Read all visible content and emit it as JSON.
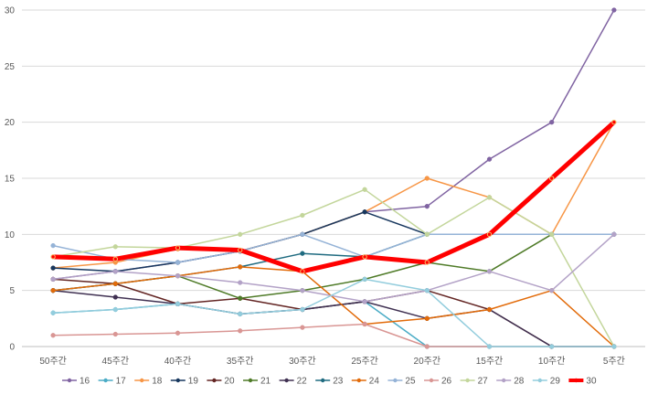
{
  "chart_data": {
    "type": "line",
    "title": "",
    "xlabel": "",
    "ylabel": "",
    "categories": [
      "50주간",
      "45주간",
      "40주간",
      "35주간",
      "30주간",
      "25주간",
      "20주간",
      "15주간",
      "10주간",
      "5주간"
    ],
    "ylim": [
      0,
      30
    ],
    "yticks": [
      0,
      5,
      10,
      15,
      20,
      25,
      30
    ],
    "grid": true,
    "legend_position": "bottom",
    "series": [
      {
        "name": "16",
        "color": "#8064a2",
        "width": 1.5,
        "values": [
          6,
          6.7,
          7.5,
          8.5,
          10,
          12,
          12.5,
          16.7,
          20,
          30
        ]
      },
      {
        "name": "17",
        "color": "#4bacc6",
        "width": 1.5,
        "values": [
          3,
          3.3,
          3.8,
          2.9,
          3.3,
          4,
          0,
          0,
          0,
          0
        ]
      },
      {
        "name": "18",
        "color": "#f79646",
        "width": 1.5,
        "values": [
          7,
          7.5,
          8.7,
          8.5,
          10,
          12,
          15,
          13.3,
          10,
          20
        ]
      },
      {
        "name": "19",
        "color": "#17375e",
        "width": 1.5,
        "values": [
          7,
          6.7,
          7.5,
          8.5,
          10,
          12,
          10,
          10,
          10,
          10
        ]
      },
      {
        "name": "20",
        "color": "#632523",
        "width": 1.5,
        "values": [
          6,
          5.6,
          3.8,
          4.3,
          3.3,
          4,
          5,
          3.3,
          0,
          0
        ]
      },
      {
        "name": "21",
        "color": "#4f7b28",
        "width": 1.5,
        "values": [
          5,
          5.6,
          6.3,
          4.3,
          5,
          6,
          7.5,
          6.7,
          10,
          10
        ]
      },
      {
        "name": "22",
        "color": "#403152",
        "width": 1.5,
        "values": [
          5,
          4.4,
          3.8,
          2.9,
          3.3,
          4,
          2.5,
          3.3,
          0,
          0
        ]
      },
      {
        "name": "23",
        "color": "#1f6b80",
        "width": 1.5,
        "values": [
          5,
          5.6,
          6.3,
          7.1,
          8.3,
          8,
          10,
          10,
          10,
          10
        ]
      },
      {
        "name": "24",
        "color": "#e26b0a",
        "width": 1.5,
        "values": [
          5,
          5.6,
          6.3,
          7.1,
          6.7,
          2,
          2.5,
          3.3,
          5,
          0
        ]
      },
      {
        "name": "25",
        "color": "#95b3d7",
        "width": 1.5,
        "values": [
          9,
          7.8,
          7.5,
          8.5,
          10,
          8,
          10,
          10,
          10,
          10
        ]
      },
      {
        "name": "26",
        "color": "#d99694",
        "width": 1.5,
        "values": [
          1,
          1.1,
          1.2,
          1.4,
          1.7,
          2,
          0,
          0,
          0,
          0
        ]
      },
      {
        "name": "27",
        "color": "#c3d69b",
        "width": 1.5,
        "values": [
          8,
          8.9,
          8.8,
          10,
          11.7,
          14,
          10,
          13.3,
          10,
          0
        ]
      },
      {
        "name": "28",
        "color": "#b3a2c7",
        "width": 1.5,
        "values": [
          6,
          6.7,
          6.3,
          5.7,
          5,
          4,
          5,
          6.7,
          5,
          10
        ]
      },
      {
        "name": "29",
        "color": "#93cddd",
        "width": 1.5,
        "values": [
          3,
          3.3,
          3.8,
          2.9,
          3.3,
          6,
          5,
          0,
          0,
          0
        ]
      },
      {
        "name": "30",
        "color": "#ff0000",
        "width": 5,
        "values": [
          8,
          7.8,
          8.8,
          8.6,
          6.7,
          8,
          7.5,
          10,
          15,
          20
        ]
      }
    ]
  }
}
